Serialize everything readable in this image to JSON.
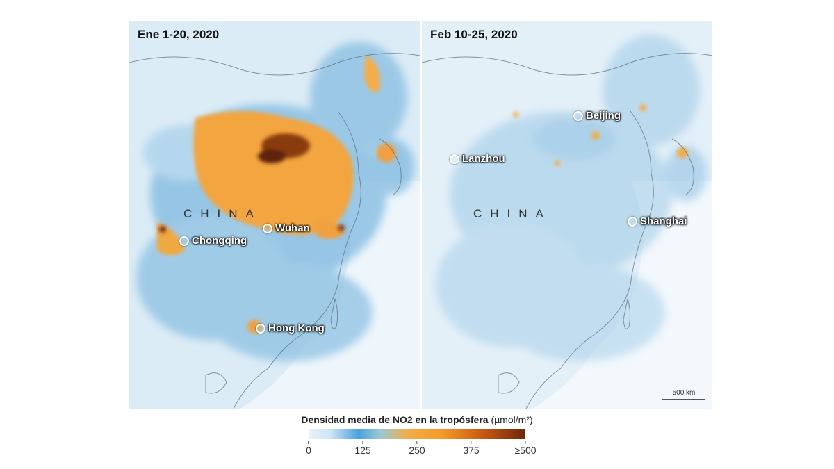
{
  "panels": [
    {
      "title": "Ene 1-20, 2020",
      "country": "CHINA",
      "cities": [
        "Chongqing",
        "Wuhan",
        "Hong Kong"
      ]
    },
    {
      "title": "Feb 10-25, 2020",
      "country": "CHINA",
      "cities": [
        "Beijing",
        "Lanzhou",
        "Shanghai"
      ],
      "scale_label": "500 km"
    }
  ],
  "legend": {
    "title_bold": "Densidad media de NO2  en la tropósfera",
    "title_unit": "(µmol/m²)",
    "ticks": [
      "0",
      "125",
      "250",
      "375",
      "≥500"
    ],
    "colors": [
      "#e8f2fa",
      "#4aa3db",
      "#f3ac45",
      "#c95a12",
      "#6e260c"
    ]
  }
}
